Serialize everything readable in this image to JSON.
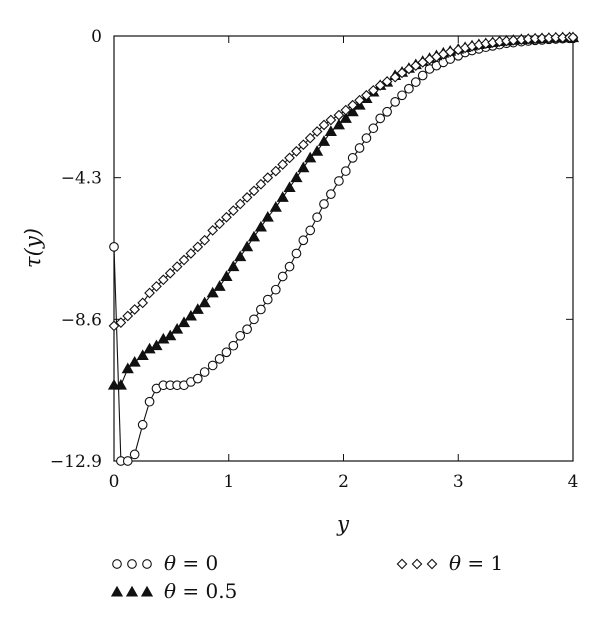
{
  "chart_data": {
    "type": "line",
    "title": "",
    "xlabel": "y",
    "ylabel": "τ(y)",
    "xlim": [
      0,
      4
    ],
    "ylim": [
      -12.9,
      0
    ],
    "xticks": [
      0,
      1,
      2,
      3,
      4
    ],
    "xtick_labels": [
      "0",
      "1",
      "2",
      "3",
      "4"
    ],
    "yticks": [
      0,
      -4.3,
      -8.6,
      -12.9
    ],
    "ytick_labels": [
      "0",
      "−4.3",
      "−8.6",
      "−12.9"
    ],
    "grid": false,
    "legend_position": "bottom",
    "series": [
      {
        "name": "θ = 0",
        "label_symbol": "θ",
        "label_value": " = 0",
        "marker": "circle",
        "x": [
          0,
          0.06,
          0.12,
          0.18,
          0.25,
          0.31,
          0.37,
          0.43,
          0.49,
          0.55,
          0.61,
          0.67,
          0.73,
          0.79,
          0.86,
          0.92,
          0.98,
          1.04,
          1.1,
          1.16,
          1.22,
          1.28,
          1.34,
          1.41,
          1.47,
          1.53,
          1.59,
          1.65,
          1.71,
          1.77,
          1.83,
          1.89,
          1.96,
          2.02,
          2.08,
          2.14,
          2.2,
          2.26,
          2.32,
          2.38,
          2.45,
          2.51,
          2.57,
          2.63,
          2.69,
          2.75,
          2.81,
          2.87,
          2.93,
          3.0,
          3.06,
          3.12,
          3.18,
          3.24,
          3.3,
          3.36,
          3.42,
          3.48,
          3.55,
          3.61,
          3.67,
          3.73,
          3.79,
          3.85,
          3.91,
          3.97,
          4.0
        ],
        "y": [
          -6.4,
          -12.9,
          -12.9,
          -12.7,
          -11.8,
          -11.1,
          -10.7,
          -10.6,
          -10.6,
          -10.6,
          -10.6,
          -10.5,
          -10.4,
          -10.2,
          -10.0,
          -9.8,
          -9.6,
          -9.4,
          -9.1,
          -8.9,
          -8.6,
          -8.3,
          -8.0,
          -7.7,
          -7.3,
          -7.0,
          -6.6,
          -6.2,
          -5.9,
          -5.5,
          -5.1,
          -4.8,
          -4.4,
          -4.1,
          -3.7,
          -3.4,
          -3.1,
          -2.8,
          -2.5,
          -2.3,
          -2.0,
          -1.8,
          -1.6,
          -1.4,
          -1.2,
          -1.0,
          -0.9,
          -0.8,
          -0.7,
          -0.6,
          -0.5,
          -0.44,
          -0.39,
          -0.34,
          -0.3,
          -0.26,
          -0.22,
          -0.2,
          -0.17,
          -0.15,
          -0.13,
          -0.12,
          -0.1,
          -0.09,
          -0.08,
          -0.07,
          -0.07
        ]
      },
      {
        "name": "θ = 0.5",
        "label_symbol": "θ",
        "label_value": " = 0.5",
        "marker": "triangle",
        "x": [
          0,
          0.06,
          0.12,
          0.18,
          0.25,
          0.31,
          0.37,
          0.43,
          0.49,
          0.55,
          0.61,
          0.67,
          0.73,
          0.79,
          0.86,
          0.92,
          0.98,
          1.04,
          1.1,
          1.16,
          1.22,
          1.28,
          1.34,
          1.41,
          1.47,
          1.53,
          1.59,
          1.65,
          1.71,
          1.77,
          1.83,
          1.89,
          1.96,
          2.02,
          2.08,
          2.14,
          2.2,
          2.26,
          2.32,
          2.38,
          2.45,
          2.51,
          2.57,
          2.63,
          2.69,
          2.75,
          2.81,
          2.87,
          2.93,
          3.0,
          3.06,
          3.12,
          3.18,
          3.24,
          3.3,
          3.36,
          3.42,
          3.48,
          3.55,
          3.61,
          3.67,
          3.73,
          3.79,
          3.85,
          3.91,
          3.97,
          4.0
        ],
        "y": [
          -10.6,
          -10.6,
          -10.1,
          -9.9,
          -9.7,
          -9.5,
          -9.4,
          -9.2,
          -9.1,
          -8.9,
          -8.7,
          -8.5,
          -8.3,
          -8.1,
          -7.8,
          -7.6,
          -7.3,
          -7.0,
          -6.7,
          -6.4,
          -6.1,
          -5.8,
          -5.5,
          -5.2,
          -4.9,
          -4.6,
          -4.3,
          -4.0,
          -3.7,
          -3.5,
          -3.2,
          -2.9,
          -2.7,
          -2.5,
          -2.3,
          -2.1,
          -1.9,
          -1.7,
          -1.5,
          -1.4,
          -1.2,
          -1.1,
          -0.98,
          -0.87,
          -0.77,
          -0.68,
          -0.6,
          -0.52,
          -0.46,
          -0.4,
          -0.35,
          -0.3,
          -0.26,
          -0.23,
          -0.2,
          -0.17,
          -0.15,
          -0.13,
          -0.11,
          -0.1,
          -0.09,
          -0.08,
          -0.07,
          -0.06,
          -0.05,
          -0.05,
          -0.05
        ]
      },
      {
        "name": "θ = 1",
        "label_symbol": "θ",
        "label_value": " = 1",
        "marker": "diamond",
        "x": [
          0,
          0.06,
          0.12,
          0.18,
          0.25,
          0.31,
          0.37,
          0.43,
          0.49,
          0.55,
          0.61,
          0.67,
          0.73,
          0.79,
          0.86,
          0.92,
          0.98,
          1.04,
          1.1,
          1.16,
          1.22,
          1.28,
          1.34,
          1.41,
          1.47,
          1.53,
          1.59,
          1.65,
          1.71,
          1.77,
          1.83,
          1.89,
          1.96,
          2.02,
          2.08,
          2.14,
          2.2,
          2.26,
          2.32,
          2.38,
          2.45,
          2.51,
          2.57,
          2.63,
          2.69,
          2.75,
          2.81,
          2.87,
          2.93,
          3.0,
          3.06,
          3.12,
          3.18,
          3.24,
          3.3,
          3.36,
          3.42,
          3.48,
          3.55,
          3.61,
          3.67,
          3.73,
          3.79,
          3.85,
          3.91,
          3.97,
          4.0
        ],
        "y": [
          -8.8,
          -8.7,
          -8.5,
          -8.3,
          -8.1,
          -7.8,
          -7.6,
          -7.4,
          -7.2,
          -7.0,
          -6.8,
          -6.6,
          -6.4,
          -6.2,
          -5.9,
          -5.7,
          -5.5,
          -5.3,
          -5.1,
          -4.9,
          -4.7,
          -4.5,
          -4.3,
          -4.1,
          -3.9,
          -3.7,
          -3.5,
          -3.3,
          -3.1,
          -2.9,
          -2.7,
          -2.55,
          -2.4,
          -2.25,
          -2.1,
          -1.95,
          -1.8,
          -1.65,
          -1.5,
          -1.38,
          -1.25,
          -1.12,
          -1.0,
          -0.9,
          -0.8,
          -0.71,
          -0.63,
          -0.55,
          -0.48,
          -0.42,
          -0.36,
          -0.31,
          -0.27,
          -0.23,
          -0.2,
          -0.17,
          -0.15,
          -0.13,
          -0.11,
          -0.09,
          -0.08,
          -0.07,
          -0.06,
          -0.05,
          -0.05,
          -0.04,
          -0.04
        ]
      }
    ]
  }
}
